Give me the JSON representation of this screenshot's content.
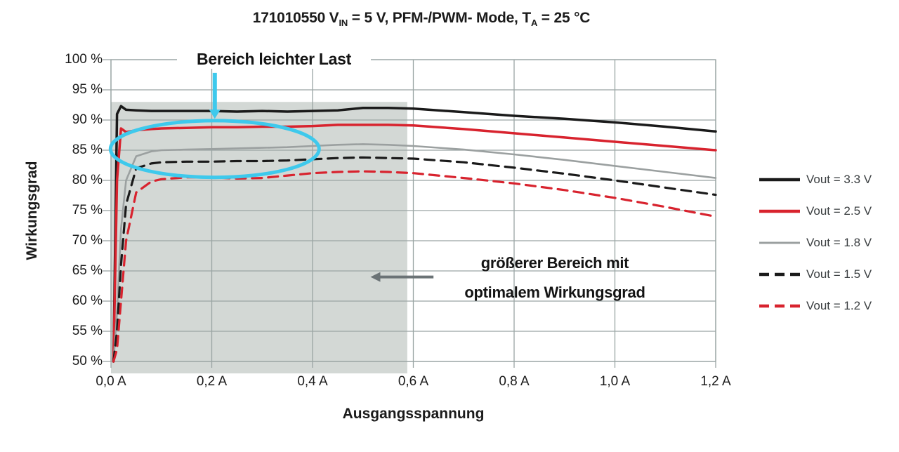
{
  "title": {
    "part1": "171010550 V",
    "sub1": "IN",
    "part2": " = 5 V, PFM-/PWM- Mode, T",
    "sub2": "A",
    "part3": " = 25 °C"
  },
  "axes": {
    "y_label": "Wirkungsgrad",
    "x_label": "Ausgangsspannung"
  },
  "colors": {
    "background": "#ffffff",
    "grid": "#9aa5a4",
    "shade": "#d3d8d5",
    "highlight_cyan": "#3ec9ec",
    "arrow_gray": "#6b7376",
    "curve_black": "#1a1a1a",
    "curve_red": "#d8232e",
    "curve_gray": "#9ba0a0",
    "text": "#1b1b1b"
  },
  "chart_data": {
    "type": "line",
    "title": "171010550 VIN = 5 V, PFM-/PWM- Mode, TA = 25 °C",
    "xlabel": "Ausgangsspannung",
    "ylabel": "Wirkungsgrad",
    "xlim": [
      0,
      1.2
    ],
    "ylim": [
      50,
      100
    ],
    "grid": true,
    "x_ticks": [
      "0,0 A",
      "0,2 A",
      "0,4 A",
      "0,6 A",
      "0,8 A",
      "1,0 A",
      "1,2 A"
    ],
    "x_tick_values": [
      0,
      0.2,
      0.4,
      0.6,
      0.8,
      1.0,
      1.2
    ],
    "y_ticks": [
      "100 %",
      "95 %",
      "90 %",
      "85 %",
      "80 %",
      "75 %",
      "70 %",
      "65 %",
      "60 %",
      "55 %",
      "50 %"
    ],
    "y_tick_values": [
      100,
      95,
      90,
      85,
      80,
      75,
      70,
      65,
      60,
      55,
      50
    ],
    "x": [
      0.005,
      0.012,
      0.02,
      0.03,
      0.05,
      0.08,
      0.1,
      0.15,
      0.2,
      0.25,
      0.3,
      0.35,
      0.4,
      0.45,
      0.5,
      0.55,
      0.6,
      0.7,
      0.8,
      0.9,
      1.0,
      1.1,
      1.2
    ],
    "series": [
      {
        "name": "Vout = 3.3 V",
        "color": "#1a1a1a",
        "dashed": false,
        "values": [
          50,
          91.0,
          92.3,
          91.7,
          91.6,
          91.5,
          91.5,
          91.5,
          91.5,
          91.4,
          91.5,
          91.4,
          91.5,
          91.6,
          92.0,
          92.0,
          91.9,
          91.3,
          90.7,
          90.2,
          89.6,
          88.9,
          88.1
        ]
      },
      {
        "name": "Vout = 2.5 V",
        "color": "#d8232e",
        "dashed": false,
        "values": [
          50,
          80.0,
          88.6,
          88.0,
          88.3,
          88.5,
          88.6,
          88.7,
          88.8,
          88.8,
          88.9,
          88.9,
          89.0,
          89.2,
          89.2,
          89.2,
          89.1,
          88.5,
          87.8,
          87.1,
          86.4,
          85.7,
          85.0
        ]
      },
      {
        "name": "Vout = 1.8 V",
        "color": "#9ba0a0",
        "dashed": false,
        "values": [
          50,
          58.0,
          72.0,
          80.0,
          84.0,
          84.8,
          85.0,
          85.1,
          85.2,
          85.3,
          85.4,
          85.5,
          85.7,
          85.9,
          86.0,
          85.9,
          85.7,
          85.1,
          84.3,
          83.4,
          82.4,
          81.4,
          80.4
        ]
      },
      {
        "name": "Vout = 1.5 V",
        "color": "#1a1a1a",
        "dashed": true,
        "values": [
          50,
          55.0,
          66.0,
          76.0,
          82.0,
          82.8,
          83.0,
          83.1,
          83.1,
          83.2,
          83.2,
          83.3,
          83.5,
          83.7,
          83.8,
          83.7,
          83.6,
          83.0,
          82.1,
          81.1,
          80.0,
          78.8,
          77.6
        ]
      },
      {
        "name": "Vout = 1.2 V",
        "color": "#d8232e",
        "dashed": true,
        "values": [
          50,
          52.0,
          60.0,
          70.0,
          78.0,
          79.8,
          80.2,
          80.5,
          80.5,
          80.3,
          80.4,
          80.8,
          81.2,
          81.4,
          81.5,
          81.4,
          81.2,
          80.4,
          79.5,
          78.4,
          77.1,
          75.6,
          74.0
        ]
      }
    ],
    "shaded_region": {
      "x_start": 0,
      "x_end": 0.588,
      "y_top_pct": 93
    },
    "annotations": {
      "light_load_label": "Bereich leichter Last",
      "ellipse": {
        "cx_a": 0.206,
        "cy_pct": 85.2,
        "rx_a": 0.207,
        "ry_pct": 4.7
      },
      "down_arrow": {
        "x_a": 0.206,
        "from_pct": 97.8,
        "to_pct": 90.2
      },
      "optimal_label_line1": "größerer Bereich mit",
      "optimal_label_line2": "optimalem Wirkungsgrad",
      "left_arrow": {
        "y_pct": 64.0,
        "from_a": 0.64,
        "to_a": 0.515
      }
    },
    "legend_position": "right"
  }
}
